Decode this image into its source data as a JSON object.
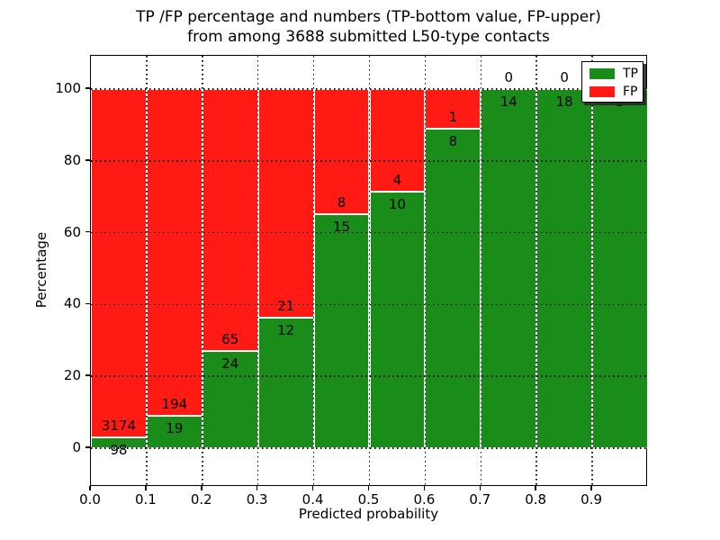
{
  "title": {
    "line1": "TP /FP percentage and numbers (TP-bottom value, FP-upper)",
    "line2": "from among 3688 submitted L50-type contacts"
  },
  "chart_data": {
    "type": "bar",
    "stacked": true,
    "bar_mode": "percent-stacked-with-count-labels",
    "title": "TP /FP percentage and numbers (TP-bottom value, FP-upper) from among 3688 submitted L50-type contacts",
    "xlabel": "Predicted probability",
    "ylabel": "Percentage",
    "total_contacts": 3688,
    "categories": [
      "0.0-0.1",
      "0.1-0.2",
      "0.2-0.3",
      "0.3-0.4",
      "0.4-0.5",
      "0.5-0.6",
      "0.6-0.7",
      "0.7-0.8",
      "0.8-0.9",
      "0.9-1.0"
    ],
    "series": [
      {
        "name": "TP",
        "color": "#1a8c1a",
        "values": [
          98,
          19,
          24,
          12,
          15,
          10,
          8,
          14,
          18,
          3
        ]
      },
      {
        "name": "FP",
        "color": "#ff1a14",
        "values": [
          3174,
          194,
          65,
          21,
          8,
          4,
          1,
          0,
          0,
          0
        ]
      }
    ],
    "x_ticks": [
      "0.0",
      "0.1",
      "0.2",
      "0.3",
      "0.4",
      "0.5",
      "0.6",
      "0.7",
      "0.8",
      "0.9"
    ],
    "y_ticks": [
      0,
      20,
      40,
      60,
      80,
      100
    ],
    "xlim": [
      0.0,
      1.0
    ],
    "ylim": [
      -10.8,
      109.3
    ],
    "grid": "dotted",
    "legend": {
      "position": "upper right",
      "entries": [
        "TP",
        "FP"
      ]
    }
  }
}
